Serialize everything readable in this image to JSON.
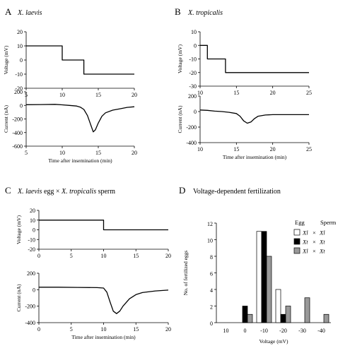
{
  "chart_data": [
    {
      "panel": "A",
      "type": "line",
      "title": "X. laevis",
      "voltage": {
        "ylabel": "Voltage (mV)",
        "xlim": [
          5,
          20
        ],
        "ylim": [
          -20,
          20
        ],
        "xticks": [
          "5",
          "10",
          "15",
          "20"
        ],
        "yticks": [
          "20",
          "10",
          "0",
          "-10",
          "-20"
        ],
        "x": [
          5,
          10,
          10,
          13,
          13,
          20
        ],
        "y": [
          10,
          10,
          0,
          0,
          -10,
          -10
        ]
      },
      "current": {
        "ylabel": "Current (nA)",
        "xlabel": "Time after insemination (min)",
        "xlim": [
          5,
          20
        ],
        "ylim": [
          -600,
          200
        ],
        "xticks": [
          "5",
          "10",
          "15",
          "20"
        ],
        "yticks": [
          "200",
          "0",
          "-200",
          "-400",
          "-600"
        ],
        "x": [
          5,
          7,
          9,
          10,
          11,
          12,
          12.5,
          13,
          13.5,
          14,
          14.3,
          14.6,
          15,
          15.5,
          16,
          17,
          18,
          19,
          20
        ],
        "y": [
          10,
          12,
          15,
          8,
          0,
          -10,
          -25,
          -60,
          -150,
          -300,
          -390,
          -360,
          -260,
          -160,
          -110,
          -70,
          -50,
          -30,
          -20
        ]
      }
    },
    {
      "panel": "B",
      "type": "line",
      "title": "X. tropicalis",
      "voltage": {
        "ylabel": "Voltage (mV)",
        "xlim": [
          10,
          25
        ],
        "ylim": [
          -30,
          10
        ],
        "xticks": [
          "10",
          "15",
          "20",
          "25"
        ],
        "yticks": [
          "10",
          "0",
          "-10",
          "-20",
          "-30"
        ],
        "x": [
          10,
          11,
          11,
          13.5,
          13.5,
          25
        ],
        "y": [
          0,
          0,
          -10,
          -10,
          -20,
          -20
        ]
      },
      "current": {
        "ylabel": "Current (nA)",
        "xlabel": "Time after insemination (min)",
        "xlim": [
          10,
          25
        ],
        "ylim": [
          -400,
          200
        ],
        "xticks": [
          "10",
          "15",
          "20",
          "25"
        ],
        "yticks": [
          "200",
          "0",
          "-200",
          "-400"
        ],
        "x": [
          10,
          11,
          12,
          13,
          14,
          15,
          15.5,
          16,
          16.5,
          17,
          17.5,
          18,
          19,
          20,
          22,
          25
        ],
        "y": [
          20,
          15,
          5,
          0,
          -10,
          -25,
          -60,
          -120,
          -150,
          -135,
          -90,
          -60,
          -45,
          -40,
          -40,
          -40
        ]
      }
    },
    {
      "panel": "C",
      "type": "line",
      "title_parts": [
        "X. laevis",
        " egg × ",
        "X. tropicalis",
        " sperm"
      ],
      "voltage": {
        "ylabel": "Voltage (mV)",
        "xlim": [
          0,
          20
        ],
        "ylim": [
          -20,
          20
        ],
        "xticks": [
          "0",
          "5",
          "10",
          "15",
          "20"
        ],
        "yticks": [
          "20",
          "10",
          "0",
          "-10",
          "-20"
        ],
        "x": [
          0,
          10,
          10,
          20
        ],
        "y": [
          10,
          10,
          0,
          0
        ]
      },
      "current": {
        "ylabel": "Current (nA)",
        "xlabel": "Time after insemination (min)",
        "xlim": [
          0,
          20
        ],
        "ylim": [
          -400,
          200
        ],
        "xticks": [
          "0",
          "5",
          "10",
          "15",
          "20"
        ],
        "yticks": [
          "200",
          "0",
          "-200",
          "-400"
        ],
        "x": [
          0,
          3,
          6,
          9,
          10,
          10.5,
          11,
          11.5,
          12,
          12.5,
          13,
          14,
          15,
          16,
          18,
          20
        ],
        "y": [
          30,
          30,
          28,
          25,
          20,
          -30,
          -150,
          -260,
          -290,
          -260,
          -200,
          -110,
          -60,
          -35,
          -15,
          -5
        ]
      }
    },
    {
      "panel": "D",
      "type": "bar",
      "title": "Voltage-dependent fertilization",
      "xlabel": "Voltage (mV)",
      "ylabel": "No. of fertilized eggs",
      "ylim": [
        0,
        12
      ],
      "yticks": [
        "12",
        "10",
        "8",
        "6",
        "4",
        "2",
        "0"
      ],
      "categories": [
        "10",
        "0",
        "-10",
        "-20",
        "-30",
        "-40"
      ],
      "legend_header": {
        "egg": "Egg",
        "sperm": "Sperm"
      },
      "series": [
        {
          "name": "Xl × Xl",
          "egg": "Xl",
          "sperm": "Xl",
          "color": "#ffffff",
          "values": [
            0,
            0,
            11,
            4,
            0,
            0
          ]
        },
        {
          "name": "Xt × Xt",
          "egg": "Xt",
          "sperm": "Xt",
          "color": "#000000",
          "values": [
            0,
            2,
            11,
            1,
            0,
            0
          ]
        },
        {
          "name": "Xl × Xt",
          "egg": "Xl",
          "sperm": "Xt",
          "color": "#999999",
          "values": [
            0,
            1,
            8,
            2,
            3,
            1
          ]
        }
      ]
    }
  ]
}
